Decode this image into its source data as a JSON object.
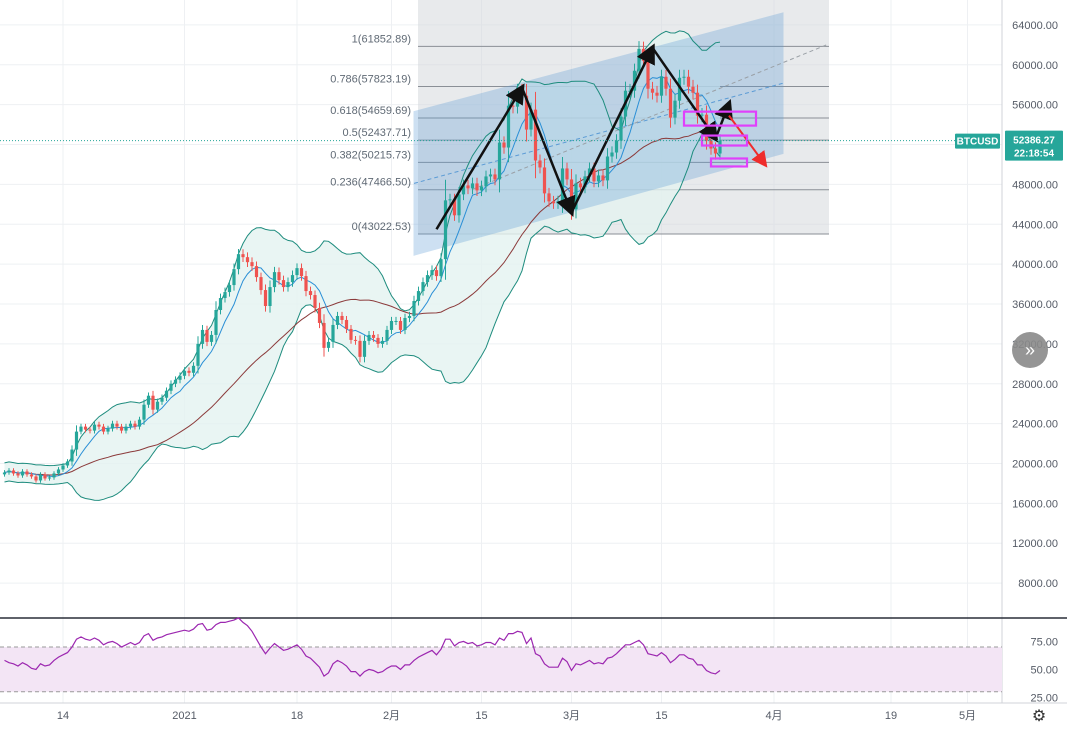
{
  "symbol": "BTCUSD",
  "last_price": "52386.27",
  "countdown": "22:18:54",
  "colors": {
    "up": "#26a69a",
    "down": "#ef5350",
    "bb": "#1e8c7e",
    "bb_fill": "#e3f2f0",
    "ma_fast": "#2a8fd6",
    "ma_slow": "#8b3a3a",
    "channel": "#5b9bd5",
    "fib_box": "#d6d8dc",
    "rsi": "#9c27b0",
    "rsi_fill": "#f3e5f5",
    "highlight": "#e040fb",
    "arrow": "#111111",
    "arrow_red": "#ef2c2c",
    "badge": "#26a69a"
  },
  "chart_data": [
    {
      "type": "candlestick",
      "title": "BTCUSD",
      "x_ticks": [
        "14",
        "2021",
        "18",
        "2月",
        "15",
        "3月",
        "15",
        "4月",
        "19",
        "5月"
      ],
      "y_ticks": [
        "64000.00",
        "60000.00",
        "56000.00",
        "52000.00",
        "48000.00",
        "44000.00",
        "40000.00",
        "36000.00",
        "32000.00",
        "28000.00",
        "24000.00",
        "20000.00",
        "16000.00",
        "12000.00",
        "8000.00"
      ],
      "ylim": [
        4600,
        66500
      ],
      "fibonacci": [
        {
          "label": "1(61852.89)",
          "level": 61852.89
        },
        {
          "label": "0.786(57823.19)",
          "level": 57823.19
        },
        {
          "label": "0.618(54659.69)",
          "level": 54659.69
        },
        {
          "label": "0.5(52437.71)",
          "level": 52437.71
        },
        {
          "label": "0.382(50215.73)",
          "level": 50215.73
        },
        {
          "label": "0.236(47466.50)",
          "level": 47466.5
        },
        {
          "label": "0(43022.53)",
          "level": 43022.53
        }
      ],
      "close_prices": [
        19100,
        19300,
        19000,
        18800,
        19200,
        18900,
        18700,
        18300,
        18900,
        18500,
        18600,
        19000,
        19400,
        19800,
        20200,
        21400,
        23200,
        23700,
        23400,
        23300,
        23900,
        23700,
        23200,
        23500,
        24000,
        23700,
        23300,
        23700,
        24000,
        23700,
        24400,
        25900,
        26800,
        25400,
        26200,
        26600,
        27300,
        28000,
        28400,
        28800,
        29300,
        29100,
        29800,
        32000,
        33400,
        32200,
        32900,
        35400,
        36600,
        37200,
        37900,
        39500,
        41000,
        40700,
        40200,
        39800,
        38700,
        37400,
        35800,
        37700,
        39200,
        38400,
        37700,
        38200,
        38900,
        39600,
        38800,
        37300,
        36900,
        35600,
        34100,
        31600,
        32200,
        33900,
        34800,
        34400,
        33500,
        32400,
        32300,
        30700,
        32300,
        32900,
        32600,
        32000,
        32300,
        33400,
        34300,
        34300,
        33400,
        34600,
        34800,
        36300,
        37300,
        38200,
        38900,
        39400,
        38800,
        40500,
        46400,
        46500,
        44900,
        47000,
        47900,
        47600,
        48100,
        47400,
        47800,
        48800,
        49000,
        48500,
        52200,
        51700,
        55900,
        55800,
        57400,
        56900,
        53500,
        55500,
        50400,
        49700,
        47100,
        46300,
        46100,
        46300,
        49600,
        48500,
        45500,
        48100,
        47700,
        48800,
        49600,
        48300,
        48900,
        48400,
        50800,
        51200,
        52400,
        54800,
        57400,
        57400,
        59400,
        61600,
        60400,
        57600,
        57200,
        56900,
        58800,
        57600,
        54700,
        56400,
        58700,
        58800,
        57800,
        57200,
        54900,
        55000,
        52400,
        51600,
        51100,
        52400
      ]
    },
    {
      "type": "line",
      "title": "RSI",
      "y_ticks": [
        "75.00",
        "50.00",
        "25.00"
      ],
      "ylim": [
        20,
        95
      ],
      "band": [
        30,
        70
      ],
      "values": [
        58,
        56,
        55,
        53,
        56,
        54,
        51,
        50,
        55,
        53,
        54,
        58,
        61,
        63,
        65,
        70,
        77,
        79,
        77,
        76,
        78,
        76,
        72,
        74,
        75,
        73,
        70,
        72,
        74,
        72,
        74,
        80,
        82,
        76,
        78,
        79,
        81,
        82,
        83,
        84,
        85,
        84,
        86,
        90,
        91,
        85,
        86,
        90,
        92,
        92,
        93,
        94,
        96,
        92,
        89,
        84,
        77,
        70,
        64,
        69,
        73,
        70,
        67,
        68,
        70,
        72,
        68,
        62,
        60,
        56,
        52,
        44,
        47,
        55,
        58,
        56,
        53,
        48,
        48,
        44,
        48,
        50,
        49,
        47,
        48,
        51,
        53,
        53,
        50,
        54,
        54,
        58,
        61,
        63,
        65,
        67,
        63,
        68,
        77,
        77,
        71,
        74,
        75,
        73,
        74,
        71,
        72,
        74,
        74,
        72,
        78,
        76,
        82,
        82,
        84,
        83,
        73,
        78,
        64,
        62,
        55,
        52,
        52,
        52,
        60,
        57,
        49,
        55,
        54,
        56,
        58,
        55,
        56,
        55,
        60,
        61,
        64,
        68,
        72,
        72,
        74,
        76,
        72,
        64,
        63,
        62,
        65,
        62,
        56,
        59,
        63,
        63,
        60,
        59,
        54,
        54,
        49,
        47,
        46,
        49
      ]
    }
  ]
}
